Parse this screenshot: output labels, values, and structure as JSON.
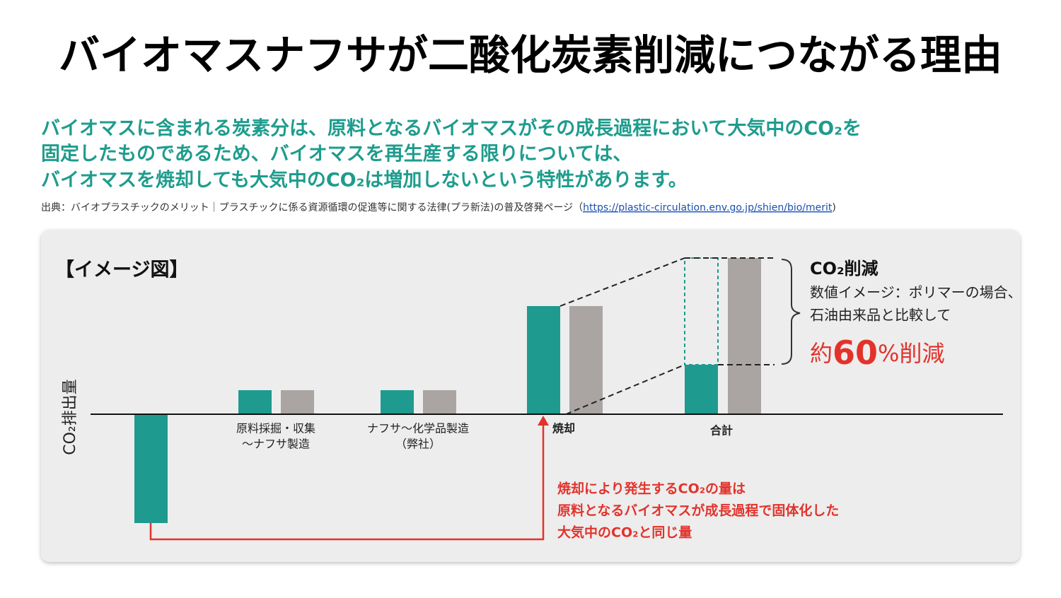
{
  "header": {
    "title": "バイオマスナフサが二酸化炭素削減につながる理由"
  },
  "lead": [
    "バイオマスに含まれる炭素分は、原料となるバイオマスがその成長過程において大気中のCO₂を",
    "固定したものであるため、バイオマスを再生産する限りについては、",
    "バイオマスを焼却しても大気中のCO₂は増加しないという特性があります。"
  ],
  "source": {
    "prefix": "出典：バイオプラスチックのメリット｜プラスチックに係る資源循環の促進等に関する法律(プラ新法)の普及啓発ページ（",
    "url": "https://plastic-circulation.env.go.jp/shien/bio/merit",
    "suffix": ")"
  },
  "figure": {
    "label": "【イメージ図】",
    "axis_label": "CO₂排出量",
    "stages": [
      [
        "原料採掘・収集",
        "〜ナフサ製造"
      ],
      [
        "ナフサ〜化学品製造",
        "（弊社）"
      ],
      [
        "焼却"
      ],
      [
        "合計"
      ]
    ],
    "callout": {
      "title": "CO₂削減",
      "lines": [
        "数値イメージ：ポリマーの場合、",
        "石油由来品と比較して"
      ],
      "result_prefix": "約",
      "result_number": "60",
      "result_suffix": "%削減"
    },
    "note": [
      "焼却により発生するCO₂の量は",
      "原料となるバイオマスが成長過程で固体化した",
      "大気中のCO₂と同じ量"
    ]
  }
}
